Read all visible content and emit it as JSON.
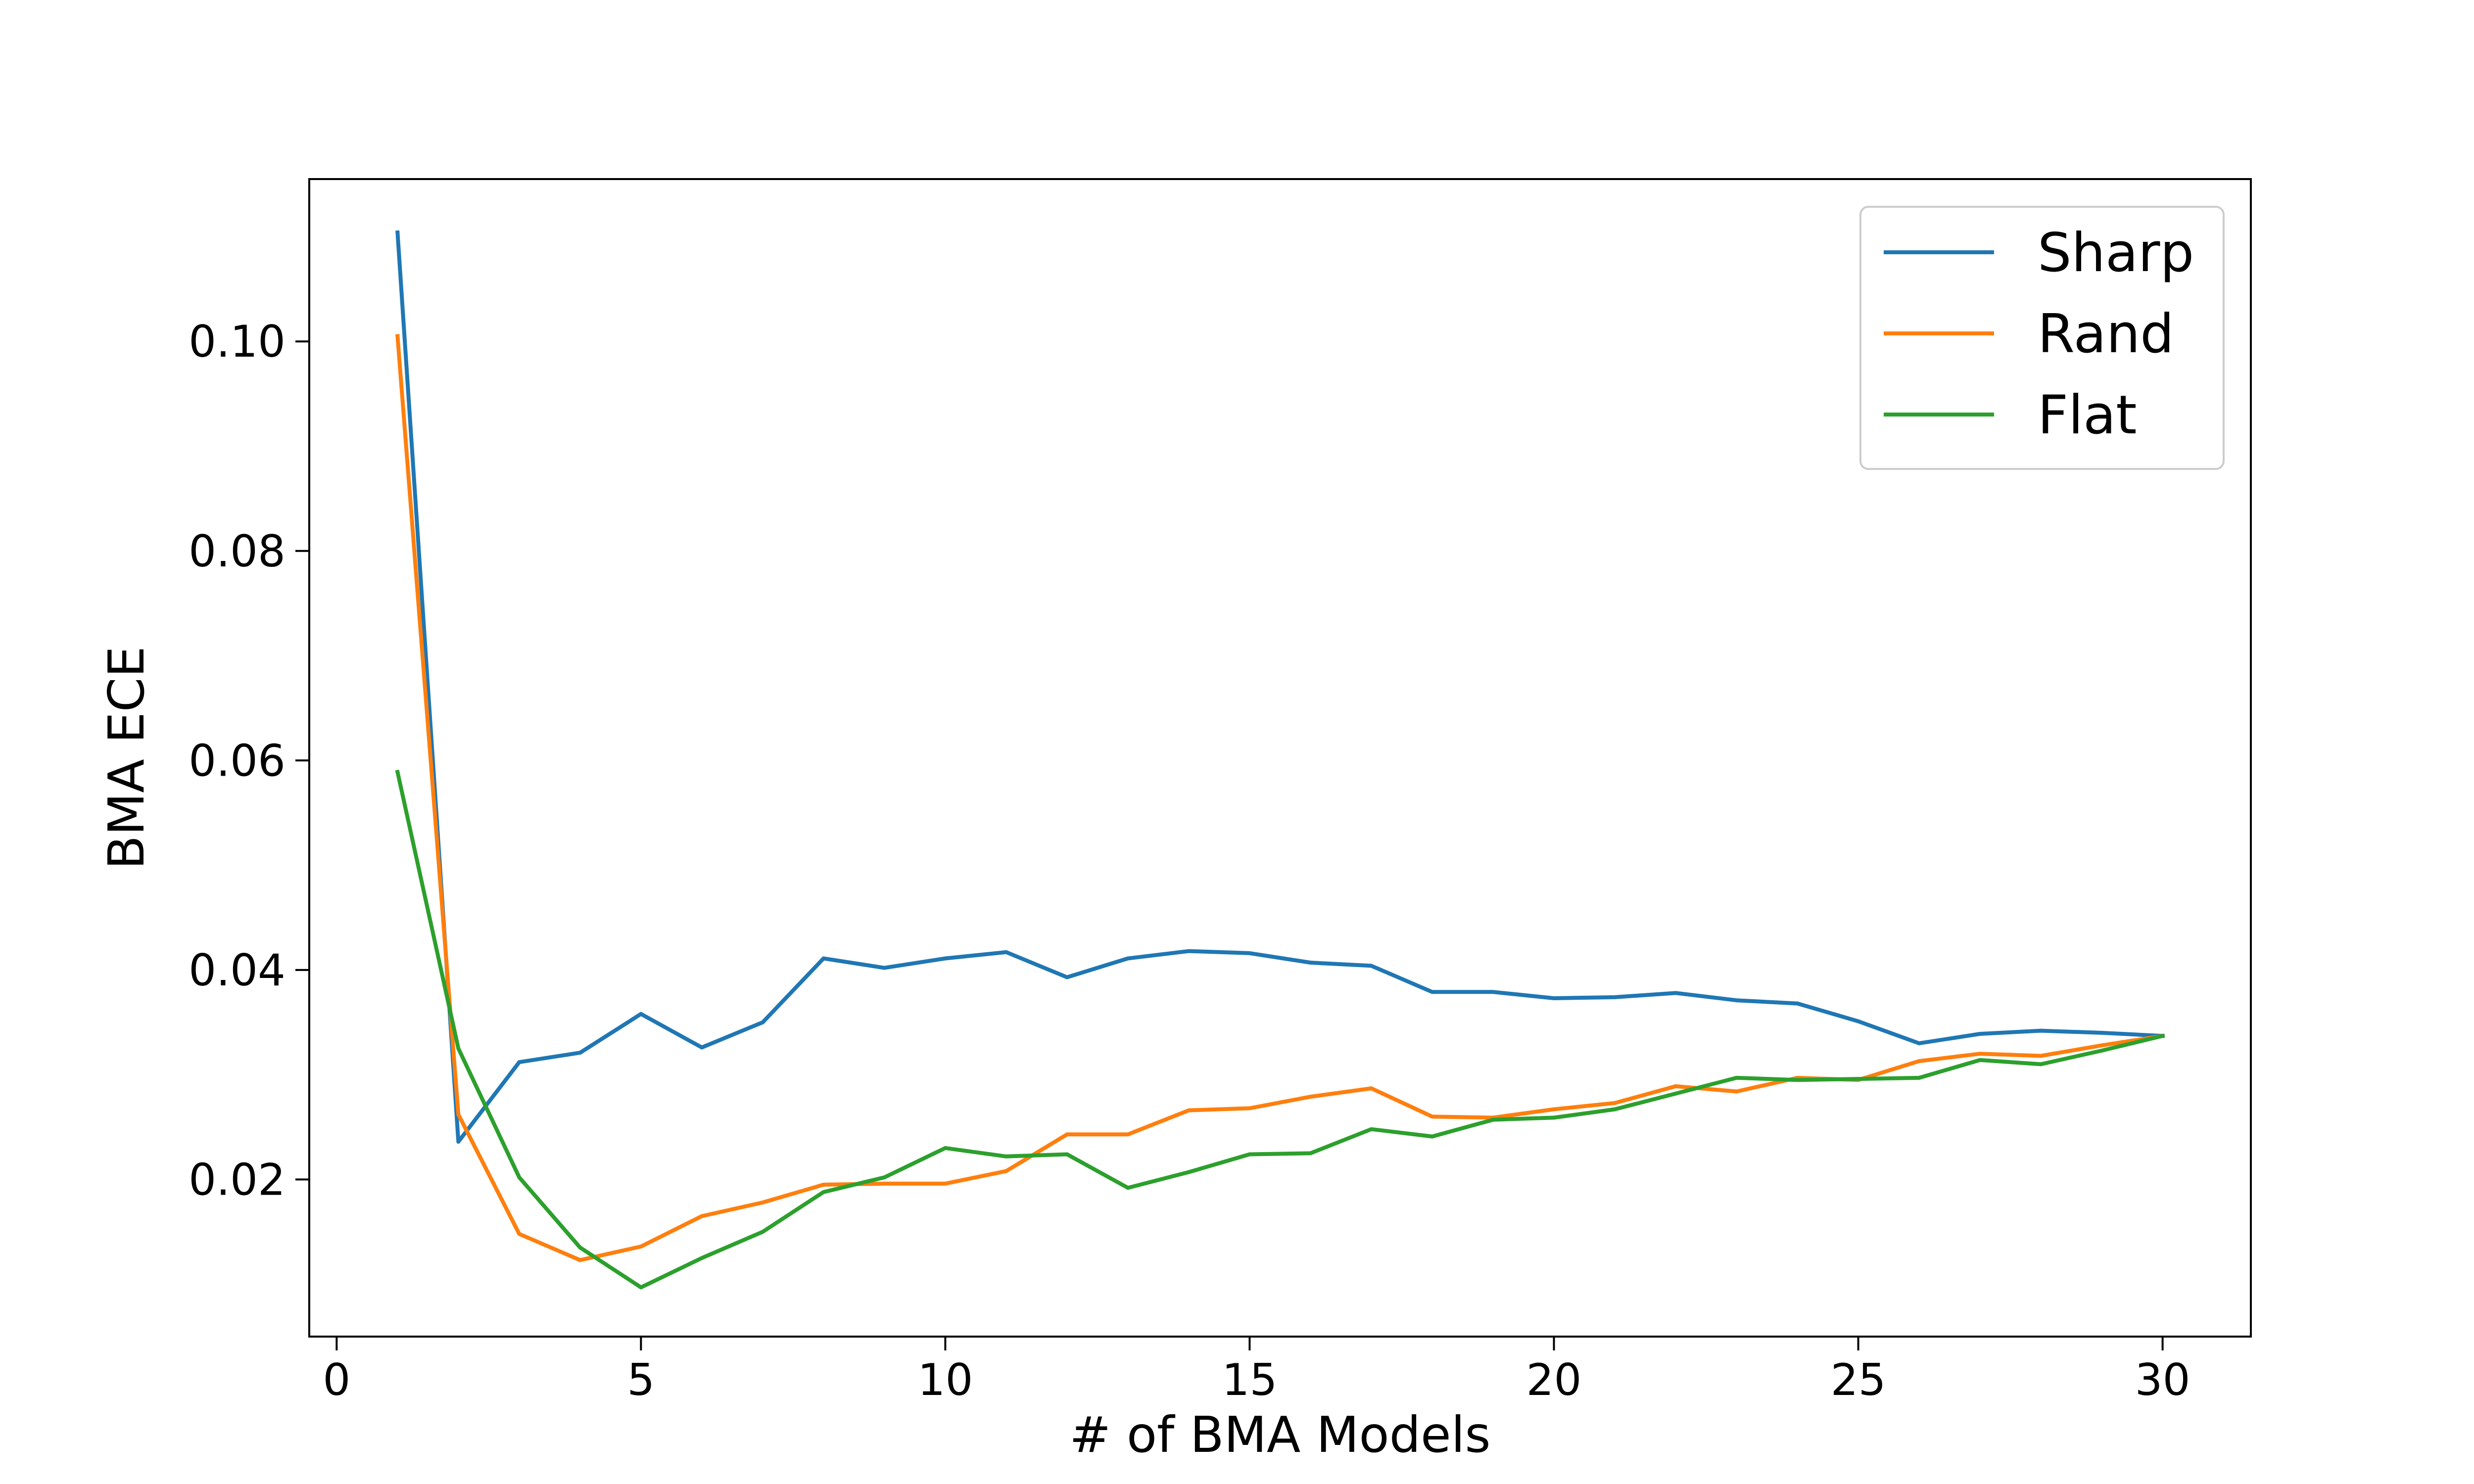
{
  "chart_data": {
    "type": "line",
    "title": "",
    "xlabel": "# of BMA Models",
    "ylabel": "BMA ECE",
    "xlim": [
      -0.45,
      31.45
    ],
    "ylim": [
      0.005,
      0.1155
    ],
    "xticks": [
      0,
      5,
      10,
      15,
      20,
      25,
      30
    ],
    "xtick_labels": [
      "0",
      "5",
      "10",
      "15",
      "20",
      "25",
      "30"
    ],
    "yticks": [
      0.02,
      0.04,
      0.06,
      0.08,
      0.1
    ],
    "ytick_labels": [
      "0.02",
      "0.04",
      "0.06",
      "0.08",
      "0.10"
    ],
    "grid": false,
    "legend_position": "top-right",
    "x": [
      1,
      2,
      3,
      4,
      5,
      6,
      7,
      8,
      9,
      10,
      11,
      12,
      13,
      14,
      15,
      16,
      17,
      18,
      19,
      20,
      21,
      22,
      23,
      24,
      25,
      26,
      27,
      28,
      29,
      30
    ],
    "series": [
      {
        "name": "Sharp",
        "color": "#1f77b4",
        "values": [
          0.1104,
          0.0236,
          0.0312,
          0.0321,
          0.0358,
          0.0326,
          0.035,
          0.0411,
          0.0402,
          0.0411,
          0.0417,
          0.0393,
          0.0411,
          0.0418,
          0.0416,
          0.0407,
          0.0404,
          0.0379,
          0.0379,
          0.0373,
          0.0374,
          0.0378,
          0.0371,
          0.0368,
          0.0351,
          0.033,
          0.0339,
          0.0342,
          0.034,
          0.0337
        ]
      },
      {
        "name": "Rand",
        "color": "#ff7f0e",
        "values": [
          0.1005,
          0.0262,
          0.0148,
          0.0123,
          0.0136,
          0.0165,
          0.0178,
          0.0195,
          0.0196,
          0.0196,
          0.0208,
          0.0243,
          0.0243,
          0.0266,
          0.0268,
          0.0279,
          0.0287,
          0.026,
          0.0259,
          0.0267,
          0.0273,
          0.0289,
          0.0284,
          0.0297,
          0.0295,
          0.0313,
          0.032,
          0.0318,
          0.0328,
          0.0337
        ]
      },
      {
        "name": "Flat",
        "color": "#2ca02c",
        "values": [
          0.0589,
          0.0325,
          0.0202,
          0.0135,
          0.0097,
          0.0125,
          0.015,
          0.0188,
          0.0202,
          0.023,
          0.0222,
          0.0224,
          0.0192,
          0.0207,
          0.0224,
          0.0225,
          0.0248,
          0.0241,
          0.0257,
          0.0259,
          0.0267,
          0.0282,
          0.0297,
          0.0295,
          0.0296,
          0.0297,
          0.0314,
          0.031,
          0.0323,
          0.0337
        ]
      }
    ]
  }
}
